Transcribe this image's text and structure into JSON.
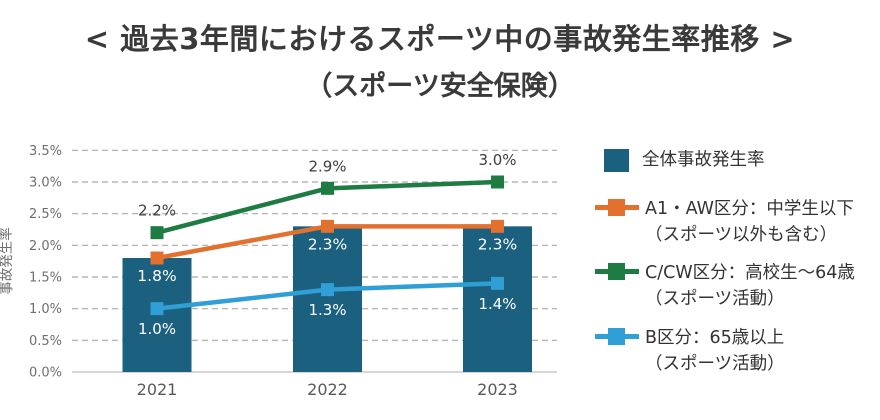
{
  "header": {
    "title": "< 過去3年間におけるスポーツ中の事故発生率推移 >",
    "subtitle": "（スポーツ安全保険）"
  },
  "chart_data": {
    "type": "combo-bar-line",
    "title": "< 過去3年間におけるスポーツ中の事故発生率推移 >（スポーツ安全保険）",
    "categories": [
      "2021",
      "2022",
      "2023"
    ],
    "xlabel": "",
    "ylabel": "事故発生率",
    "ylim": [
      0.0,
      3.5
    ],
    "ytick_step": 0.5,
    "yticks": [
      "0.0%",
      "0.5%",
      "1.0%",
      "1.5%",
      "2.0%",
      "2.5%",
      "3.0%",
      "3.5%"
    ],
    "grid": "dashed-horizontal",
    "legend_position": "right",
    "bar_series": {
      "id": "overall",
      "name": "全体事故発生率",
      "values": [
        1.8,
        2.3,
        2.3
      ],
      "labels": [
        "1.8%",
        "2.3%",
        "2.3%"
      ],
      "color": "#1B607F",
      "label_color": "#FFFFFF"
    },
    "line_series": [
      {
        "id": "a1aw",
        "name": "A1・AW区分：中学生以下（スポーツ以外も含む）",
        "values": [
          1.8,
          2.3,
          2.3
        ],
        "labels": [
          "",
          "",
          ""
        ],
        "color": "#E2702E",
        "label_placement": "none",
        "label_color": ""
      },
      {
        "id": "ccw",
        "name": "C/CW区分：高校生～64歳（スポーツ活動）",
        "values": [
          2.2,
          2.9,
          3.0
        ],
        "labels": [
          "2.2%",
          "2.9%",
          "3.0%"
        ],
        "color": "#1E7B41",
        "label_placement": "above",
        "label_color": "#3D3D3D"
      },
      {
        "id": "b",
        "name": "B区分：65歳以上（スポーツ活動）",
        "values": [
          1.0,
          1.3,
          1.4
        ],
        "labels": [
          "1.0%",
          "1.3%",
          "1.4%"
        ],
        "color": "#2F9FD6",
        "label_placement": "below",
        "label_color": "#FFFFFF"
      }
    ],
    "colors": {
      "grid": "#A9A9A9",
      "axis_line": "#C8C8C8",
      "tick_text": "#6F6F6F",
      "xtick_text": "#595959"
    }
  },
  "legend": {
    "items": [
      {
        "swatch": "square",
        "color": "#1B607F",
        "lines": [
          "全体事故発生率"
        ]
      },
      {
        "swatch": "line-marker",
        "color": "#E2702E",
        "lines": [
          "A1・AW区分：中学生以下",
          "（スポーツ以外も含む）"
        ]
      },
      {
        "swatch": "line-marker",
        "color": "#1E7B41",
        "lines": [
          "C/CW区分：高校生～64歳",
          "（スポーツ活動）"
        ]
      },
      {
        "swatch": "line-marker",
        "color": "#2F9FD6",
        "lines": [
          "B区分：65歳以上",
          "（スポーツ活動）"
        ]
      }
    ]
  }
}
